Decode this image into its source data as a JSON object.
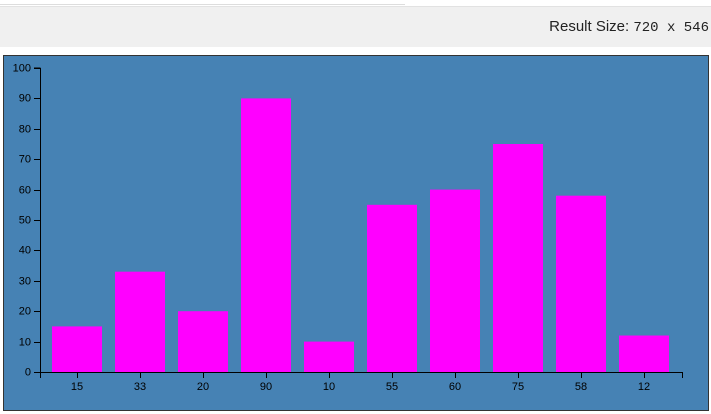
{
  "header": {
    "label": "Result Size:",
    "size": "720 x 546"
  },
  "chart_data": {
    "type": "bar",
    "categories": [
      "15",
      "33",
      "20",
      "90",
      "10",
      "55",
      "60",
      "75",
      "58",
      "12"
    ],
    "values": [
      15,
      33,
      20,
      90,
      10,
      55,
      60,
      75,
      58,
      12
    ],
    "color": "#ff00ff",
    "background": "#4682b4",
    "ylim": [
      0,
      100
    ],
    "yticks": [
      0,
      10,
      20,
      30,
      40,
      50,
      60,
      70,
      80,
      90,
      100
    ]
  }
}
